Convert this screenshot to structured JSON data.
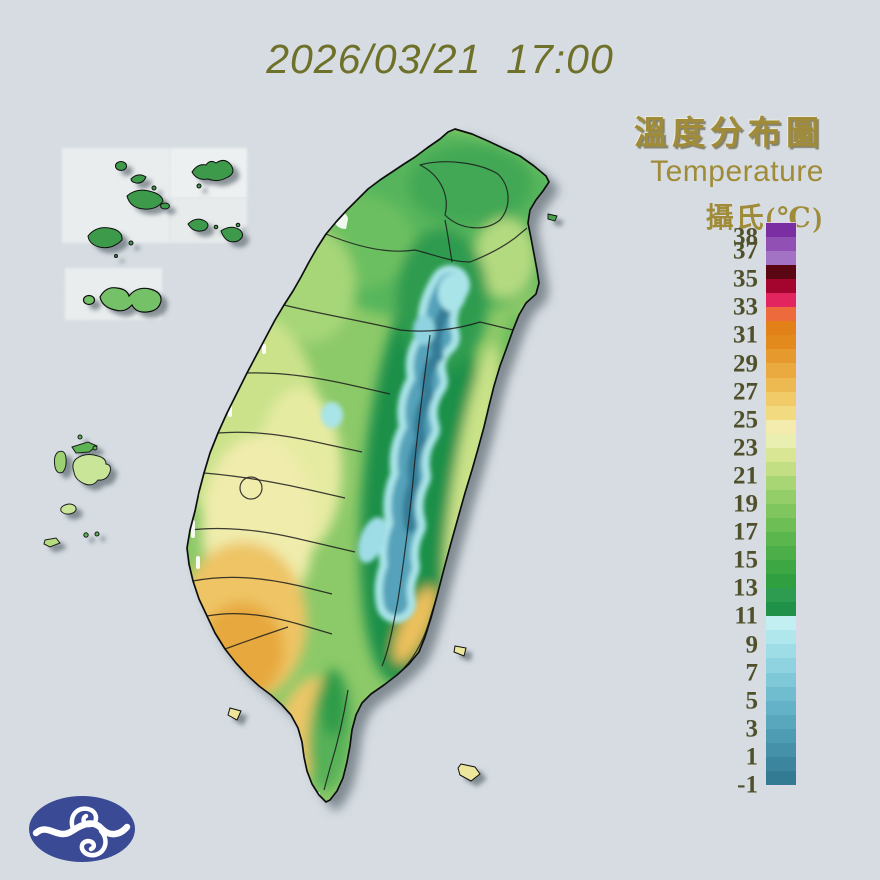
{
  "page": {
    "background_color": "#ccd4da"
  },
  "header": {
    "datetime": "2026/03/21  17:00",
    "color": "#6f7029"
  },
  "legend": {
    "title_zh": "溫度分布圖",
    "title_en": "Temperature",
    "unit_label": "攝氏(℃)",
    "title_color": "#a08b38",
    "tick_color": "#50512b",
    "scale_top_value": 39,
    "scale_bottom_value": -1,
    "ticks": [
      38,
      37,
      35,
      33,
      31,
      29,
      27,
      25,
      23,
      21,
      19,
      17,
      15,
      13,
      11,
      9,
      7,
      5,
      3,
      1,
      -1
    ],
    "segments": [
      {
        "upper": 39,
        "lower": 38,
        "color": "#7b2da2"
      },
      {
        "upper": 38,
        "lower": 37,
        "color": "#9050b4"
      },
      {
        "upper": 37,
        "lower": 36,
        "color": "#a273c4"
      },
      {
        "upper": 36,
        "lower": 35,
        "color": "#5a0713"
      },
      {
        "upper": 35,
        "lower": 34,
        "color": "#a3052e"
      },
      {
        "upper": 34,
        "lower": 33,
        "color": "#e2255e"
      },
      {
        "upper": 33,
        "lower": 32,
        "color": "#ec6a3c"
      },
      {
        "upper": 32,
        "lower": 31,
        "color": "#e28117"
      },
      {
        "upper": 31,
        "lower": 30,
        "color": "#e28a1c"
      },
      {
        "upper": 30,
        "lower": 29,
        "color": "#e69a2e"
      },
      {
        "upper": 29,
        "lower": 28,
        "color": "#eaaa40"
      },
      {
        "upper": 28,
        "lower": 27,
        "color": "#edba52"
      },
      {
        "upper": 27,
        "lower": 26,
        "color": "#f0cb68"
      },
      {
        "upper": 26,
        "lower": 25,
        "color": "#f2da80"
      },
      {
        "upper": 25,
        "lower": 24,
        "color": "#f4ecae"
      },
      {
        "upper": 24,
        "lower": 23,
        "color": "#e9efb0"
      },
      {
        "upper": 23,
        "lower": 22,
        "color": "#d9e795"
      },
      {
        "upper": 22,
        "lower": 21,
        "color": "#c2df84"
      },
      {
        "upper": 21,
        "lower": 20,
        "color": "#a9d674"
      },
      {
        "upper": 20,
        "lower": 19,
        "color": "#93ce68"
      },
      {
        "upper": 19,
        "lower": 18,
        "color": "#7fc65e"
      },
      {
        "upper": 18,
        "lower": 17,
        "color": "#6cbe55"
      },
      {
        "upper": 17,
        "lower": 16,
        "color": "#5ab64d"
      },
      {
        "upper": 16,
        "lower": 15,
        "color": "#4bae48"
      },
      {
        "upper": 15,
        "lower": 14,
        "color": "#3ca743"
      },
      {
        "upper": 14,
        "lower": 13,
        "color": "#2f9f3f"
      },
      {
        "upper": 13,
        "lower": 12,
        "color": "#2d9b50"
      },
      {
        "upper": 12,
        "lower": 11,
        "color": "#1f9148"
      },
      {
        "upper": 11,
        "lower": 10,
        "color": "#c2eff1"
      },
      {
        "upper": 10,
        "lower": 9,
        "color": "#b0e7ec"
      },
      {
        "upper": 9,
        "lower": 8,
        "color": "#9fdde6"
      },
      {
        "upper": 8,
        "lower": 7,
        "color": "#8fd3e0"
      },
      {
        "upper": 7,
        "lower": 6,
        "color": "#7fc8d8"
      },
      {
        "upper": 6,
        "lower": 5,
        "color": "#71bdd0"
      },
      {
        "upper": 5,
        "lower": 4,
        "color": "#64b2c7"
      },
      {
        "upper": 4,
        "lower": 3,
        "color": "#58a7bd"
      },
      {
        "upper": 3,
        "lower": 2,
        "color": "#4d9cb3"
      },
      {
        "upper": 2,
        "lower": 1,
        "color": "#4491a9"
      },
      {
        "upper": 1,
        "lower": 0,
        "color": "#3b869e"
      },
      {
        "upper": 0,
        "lower": -1,
        "color": "#337b93"
      }
    ]
  },
  "logo": {
    "ellipse_color": "#3b4a94",
    "glyph_color": "#ffffff"
  }
}
